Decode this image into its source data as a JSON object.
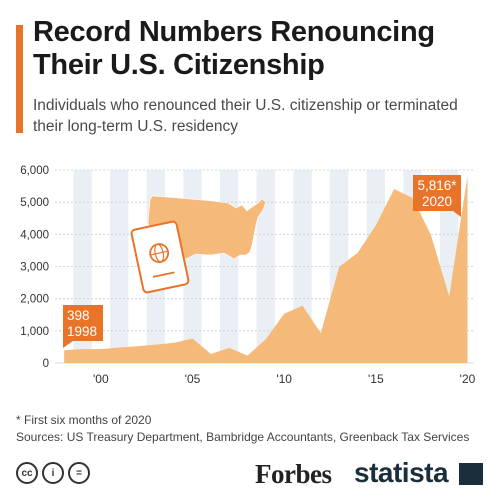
{
  "header": {
    "title": "Record Numbers Renouncing Their U.S. Citizenship",
    "subtitle": "Individuals who renounced their U.S. citizenship or terminated their long-term U.S. residency"
  },
  "footer": {
    "footnote": "* First six months of 2020",
    "sources": "Sources: US Treasury Department, Bambridge Accountants, Greenback Tax Services",
    "cc_icons": [
      "cc",
      "i",
      "="
    ],
    "forbes_logo": "Forbes",
    "statista_logo": "statista"
  },
  "colors": {
    "accent": "#e8742a",
    "area_fill": "#f5b97a",
    "stripe": "#eaeef5",
    "callout": "#e8742a"
  },
  "icons": [
    "us-map-icon",
    "passport-icon"
  ],
  "chart_data": {
    "type": "area",
    "x": [
      1998,
      1999,
      2000,
      2001,
      2002,
      2003,
      2004,
      2005,
      2006,
      2007,
      2008,
      2009,
      2010,
      2011,
      2012,
      2013,
      2014,
      2015,
      2016,
      2017,
      2018,
      2019,
      2020
    ],
    "values": [
      398,
      430,
      430,
      480,
      520,
      570,
      630,
      760,
      280,
      470,
      230,
      740,
      1530,
      1780,
      930,
      2990,
      3420,
      4280,
      5410,
      5130,
      3990,
      2070,
      5816
    ],
    "ylim": [
      0,
      6000
    ],
    "xlim": [
      1997.5,
      2020.3
    ],
    "yticks": [
      0,
      1000,
      2000,
      3000,
      4000,
      5000,
      6000
    ],
    "ytick_labels": [
      "0",
      "1,000",
      "2,000",
      "3,000",
      "4,000",
      "5,000",
      "6,000"
    ],
    "xticks": [
      2000,
      2005,
      2010,
      2015,
      2020
    ],
    "xtick_labels": [
      "'00",
      "'05",
      "'10",
      "'15",
      "'20"
    ],
    "annotations": [
      {
        "value_label": "398",
        "year_label": "1998",
        "x": 1998,
        "y": 398
      },
      {
        "value_label": "5,816*",
        "year_label": "2020",
        "x": 2020,
        "y": 5816
      }
    ],
    "grid": "vertical-stripes"
  }
}
